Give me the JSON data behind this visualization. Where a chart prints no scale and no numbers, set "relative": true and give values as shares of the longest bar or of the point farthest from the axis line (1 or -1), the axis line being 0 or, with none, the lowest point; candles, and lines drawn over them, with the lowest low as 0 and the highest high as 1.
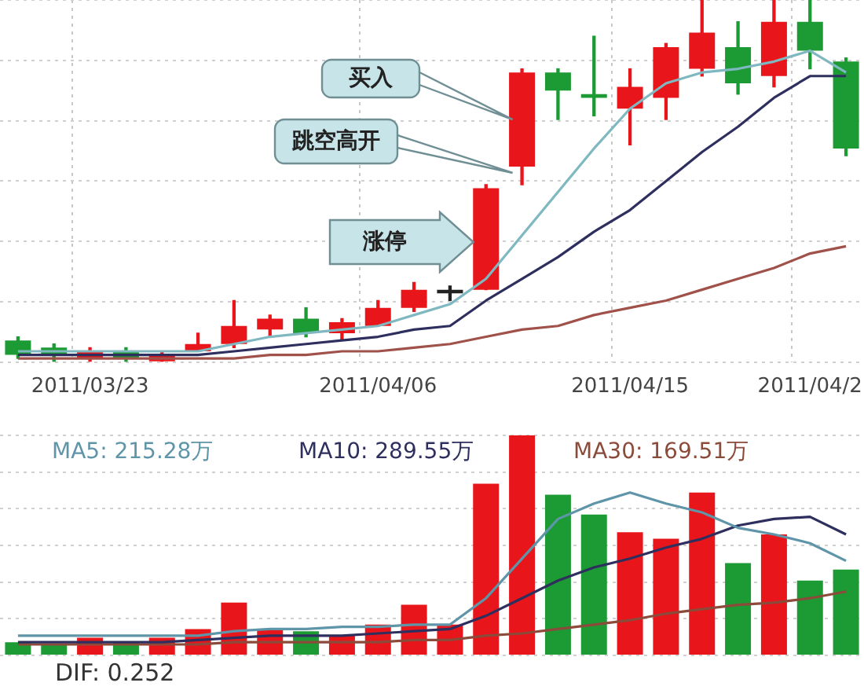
{
  "chart_data": [
    {
      "type": "candlestick",
      "relative": true,
      "grid": true,
      "tick_labels": "x",
      "categories": [
        null,
        null,
        "2011/03/23",
        null,
        null,
        null,
        null,
        null,
        null,
        null,
        "2011/04/06",
        null,
        null,
        null,
        null,
        null,
        null,
        "2011/04/15",
        null,
        null,
        null,
        null,
        "2011/04/2",
        null
      ],
      "ohlc": [
        [
          0.06,
          0.07,
          0.01,
          0.02
        ],
        [
          0.04,
          0.05,
          0.0,
          0.02
        ],
        [
          0.01,
          0.04,
          0.0,
          0.03
        ],
        [
          0.03,
          0.04,
          0.0,
          0.01
        ],
        [
          0.0,
          0.03,
          0.0,
          0.02
        ],
        [
          0.03,
          0.08,
          0.03,
          0.05
        ],
        [
          0.05,
          0.17,
          0.04,
          0.1
        ],
        [
          0.09,
          0.13,
          0.07,
          0.12
        ],
        [
          0.12,
          0.15,
          0.07,
          0.08
        ],
        [
          0.08,
          0.12,
          0.06,
          0.11
        ],
        [
          0.1,
          0.17,
          0.1,
          0.15
        ],
        [
          0.15,
          0.22,
          0.14,
          0.2
        ],
        [
          0.19,
          0.21,
          0.17,
          0.2
        ],
        [
          0.2,
          0.49,
          0.2,
          0.48
        ],
        [
          0.54,
          0.81,
          0.49,
          0.8
        ],
        [
          0.8,
          0.81,
          0.67,
          0.75
        ],
        [
          0.74,
          0.9,
          0.68,
          0.73
        ],
        [
          0.7,
          0.81,
          0.6,
          0.76
        ],
        [
          0.73,
          0.88,
          0.67,
          0.87
        ],
        [
          0.81,
          1,
          0.79,
          0.91
        ],
        [
          0.87,
          0.94,
          0.74,
          0.77
        ],
        [
          0.79,
          1,
          0.76,
          0.94
        ],
        [
          0.94,
          1,
          0.81,
          0.86
        ],
        [
          0.83,
          0.84,
          0.57,
          0.59
        ]
      ],
      "colors": [
        "#1c9a34",
        "#1c9a34",
        "#e8161b",
        "#1c9a34",
        "#e8161b",
        "#e8161b",
        "#e8161b",
        "#e8161b",
        "#1c9a34",
        "#e8161b",
        "#e8161b",
        "#e8161b",
        "#222222",
        "#e8161b",
        "#e8161b",
        "#1c9a34",
        "#1c9a34",
        "#e8161b",
        "#e8161b",
        "#e8161b",
        "#1c9a34",
        "#e8161b",
        "#1c9a34",
        "#1c9a34"
      ],
      "series": [
        {
          "type": "line",
          "color": "#7fb8c0",
          "values": [
            0.03,
            0.03,
            0.03,
            0.03,
            0.03,
            0.03,
            0.05,
            0.07,
            0.08,
            0.09,
            0.1,
            0.13,
            0.16,
            0.23,
            0.35,
            0.47,
            0.59,
            0.7,
            0.77,
            0.8,
            0.81,
            0.83,
            0.86,
            0.8
          ]
        },
        {
          "type": "line",
          "color": "#2e2f5e",
          "values": [
            0.02,
            0.02,
            0.02,
            0.02,
            0.02,
            0.02,
            0.03,
            0.04,
            0.05,
            0.06,
            0.07,
            0.09,
            0.1,
            0.17,
            0.23,
            0.29,
            0.36,
            0.42,
            0.5,
            0.58,
            0.65,
            0.73,
            0.79,
            0.79
          ]
        },
        {
          "type": "line",
          "color": "#a0524a",
          "values": [
            0.01,
            0.01,
            0.01,
            0.01,
            0.01,
            0.01,
            0.01,
            0.02,
            0.02,
            0.03,
            0.03,
            0.04,
            0.05,
            0.07,
            0.09,
            0.1,
            0.13,
            0.15,
            0.17,
            0.2,
            0.23,
            0.26,
            0.3,
            0.32
          ]
        }
      ],
      "annotations": [
        "买入",
        "跳空高开",
        "涨停"
      ]
    },
    {
      "type": "bar",
      "relative": true,
      "grid": "y",
      "tick_labels": false,
      "legend": "top",
      "categories": [
        null,
        null,
        null,
        null,
        null,
        null,
        null,
        null,
        null,
        null,
        null,
        null,
        null,
        null,
        null,
        null,
        null,
        null,
        null,
        null,
        null,
        null,
        null,
        null
      ],
      "series": [
        {
          "type": "bar",
          "colors": [
            "#1c9a34",
            "#1c9a34",
            "#e8161b",
            "#1c9a34",
            "#e8161b",
            "#e8161b",
            "#e8161b",
            "#e8161b",
            "#1c9a34",
            "#e8161b",
            "#e8161b",
            "#e8161b",
            "#e8161b",
            "#e8161b",
            "#e8161b",
            "#1c9a34",
            "#1c9a34",
            "#e8161b",
            "#e8161b",
            "#e8161b",
            "#1c9a34",
            "#e8161b",
            "#1c9a34",
            "#1c9a34"
          ],
          "values": [
            0.06,
            0.05,
            0.08,
            0.06,
            0.08,
            0.12,
            0.24,
            0.12,
            0.11,
            0.09,
            0.14,
            0.23,
            0.14,
            0.78,
            1,
            0.73,
            0.64,
            0.56,
            0.53,
            0.74,
            0.42,
            0.55,
            0.34,
            0.39
          ]
        },
        {
          "type": "line",
          "name": "MA5: 215.28万",
          "color": "#5f95a8",
          "values": [
            0.09,
            0.09,
            0.09,
            0.09,
            0.09,
            0.09,
            0.11,
            0.12,
            0.12,
            0.13,
            0.13,
            0.14,
            0.14,
            0.26,
            0.44,
            0.62,
            0.69,
            0.74,
            0.69,
            0.65,
            0.58,
            0.55,
            0.51,
            0.43
          ]
        },
        {
          "type": "line",
          "name": "MA10: 289.55万",
          "color": "#2e2f5e",
          "values": [
            0.06,
            0.06,
            0.06,
            0.06,
            0.06,
            0.07,
            0.08,
            0.09,
            0.09,
            0.09,
            0.1,
            0.11,
            0.12,
            0.18,
            0.26,
            0.34,
            0.4,
            0.44,
            0.49,
            0.53,
            0.59,
            0.62,
            0.63,
            0.55
          ]
        },
        {
          "type": "line",
          "name": "MA30: 169.51万",
          "color": "#8b4a3a",
          "values": [
            0.05,
            0.05,
            0.05,
            0.05,
            0.05,
            0.05,
            0.06,
            0.06,
            0.06,
            0.06,
            0.06,
            0.07,
            0.07,
            0.09,
            0.1,
            0.12,
            0.14,
            0.16,
            0.19,
            0.21,
            0.23,
            0.24,
            0.26,
            0.29
          ]
        }
      ],
      "annotations": [
        "DIF: 0.252"
      ]
    }
  ]
}
